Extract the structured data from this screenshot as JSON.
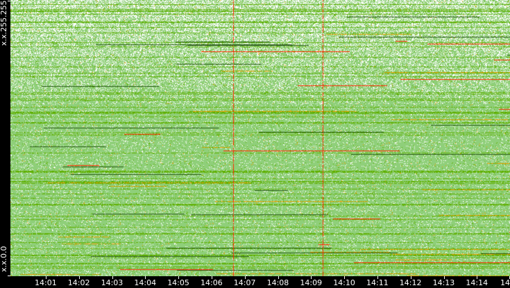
{
  "chart_data": {
    "type": "heatmap",
    "y_labels": [
      "x.x.255.255",
      "x.x.0.0"
    ],
    "x_tick_labels": [
      "14:01",
      "14:02",
      "14:03",
      "14:04",
      "14:05",
      "14:06",
      "14:07",
      "14:08",
      "14:09",
      "14:10",
      "14:11",
      "14:12",
      "14:13",
      "14:14",
      "14"
    ],
    "x_range": [
      "14:00",
      "14:14"
    ],
    "colors": {
      "background": "#000000",
      "empty": "#ffffff",
      "low": "#8fcf7a",
      "medium": "#5fb000",
      "high": "#f0a000",
      "max": "#ff2a00"
    }
  }
}
